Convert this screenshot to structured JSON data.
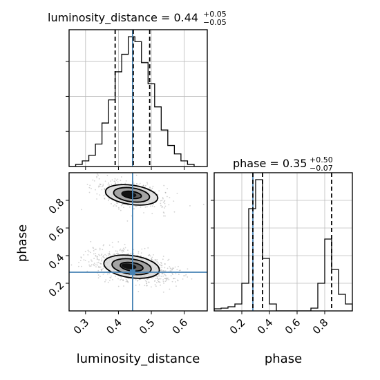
{
  "chart_data": {
    "type": "corner",
    "colors": {
      "truth": "#4682b4",
      "hist": "#000000",
      "grid": "#bbbbbb",
      "scatter": "#7f7f7f"
    },
    "panels": {
      "ld_hist": {
        "type": "histogram",
        "title": {
          "main": "luminosity_distance = 0.44",
          "plus": "+0.05",
          "minus": "−0.05"
        },
        "x_range": [
          0.25,
          0.67
        ],
        "x_ticks": [
          0.3,
          0.4,
          0.5,
          0.6
        ],
        "y_max": 0.195,
        "y_tick_marks": [
          0.05,
          0.1,
          0.15
        ],
        "bin_edges": [
          0.25,
          0.27,
          0.29,
          0.31,
          0.33,
          0.35,
          0.37,
          0.39,
          0.41,
          0.43,
          0.45,
          0.47,
          0.49,
          0.51,
          0.53,
          0.55,
          0.57,
          0.59,
          0.61,
          0.63,
          0.65
        ],
        "counts": [
          0.0,
          0.003,
          0.008,
          0.016,
          0.032,
          0.062,
          0.095,
          0.135,
          0.16,
          0.185,
          0.178,
          0.148,
          0.118,
          0.085,
          0.052,
          0.03,
          0.018,
          0.008,
          0.003,
          0.0
        ],
        "quantiles": [
          0.39,
          0.445,
          0.495
        ],
        "truth": 0.443
      },
      "phase_hist": {
        "type": "histogram",
        "title": {
          "main": "phase = 0.35",
          "plus": "+0.50",
          "minus": "−0.07"
        },
        "x_range": [
          0.0,
          1.0
        ],
        "x_ticks": [
          0.2,
          0.4,
          0.6,
          0.8
        ],
        "y_max": 1.0,
        "y_tick_marks": [
          0.2,
          0.4,
          0.6,
          0.8
        ],
        "bin_edges": [
          0.0,
          0.05,
          0.1,
          0.15,
          0.2,
          0.25,
          0.3,
          0.35,
          0.4,
          0.45,
          0.5,
          0.55,
          0.6,
          0.65,
          0.7,
          0.75,
          0.8,
          0.85,
          0.9,
          0.95,
          1.0
        ],
        "counts": [
          0.015,
          0.02,
          0.03,
          0.05,
          0.2,
          0.74,
          0.95,
          0.38,
          0.05,
          0.0,
          0.0,
          0.0,
          0.0,
          0.0,
          0.02,
          0.2,
          0.52,
          0.3,
          0.12,
          0.05
        ],
        "quantiles": [
          0.28,
          0.35,
          0.85
        ],
        "truth": 0.28
      },
      "joint": {
        "type": "scatter-density",
        "x_range": [
          0.25,
          0.67
        ],
        "y_range": [
          0.0,
          1.0
        ],
        "x_ticks": [
          0.3,
          0.4,
          0.5,
          0.6
        ],
        "y_ticks": [
          0.2,
          0.4,
          0.6,
          0.8
        ],
        "truth": [
          0.443,
          0.28
        ],
        "modes": [
          {
            "center": [
              0.44,
              0.84
            ],
            "sigma": [
              0.045,
              0.04
            ],
            "weight": 0.35,
            "contours": [
              [
                0.03,
                0.025
              ],
              [
                0.055,
                0.05
              ],
              [
                0.08,
                0.07
              ]
            ]
          },
          {
            "center": [
              0.44,
              0.32
            ],
            "sigma": [
              0.05,
              0.045
            ],
            "weight": 0.65,
            "contours": [
              [
                0.035,
                0.03
              ],
              [
                0.06,
                0.055
              ],
              [
                0.085,
                0.08
              ]
            ]
          }
        ]
      }
    },
    "xlabels": [
      "luminosity_distance",
      "phase"
    ],
    "ylabels": [
      "phase"
    ]
  }
}
